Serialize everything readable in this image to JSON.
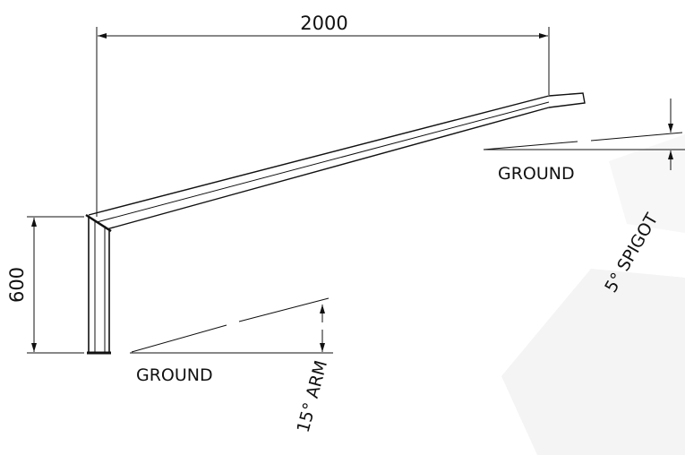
{
  "dimensions": {
    "arm_horizontal_length": "2000",
    "mast_height": "600"
  },
  "labels": {
    "ground_upper": "GROUND",
    "ground_lower": "GROUND",
    "spigot_angle": "5° SPIGOT",
    "arm_angle": "15° ARM"
  },
  "colors": {
    "line": "#111111",
    "background": "#ffffff",
    "watermark": "#f4f4f4"
  }
}
